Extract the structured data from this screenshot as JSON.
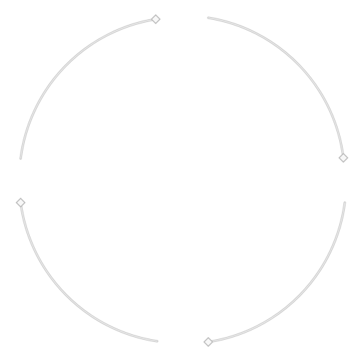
{
  "graphic": {
    "kind": "segmented-circle-reticle",
    "segment_count": 4,
    "stroke_color": "#c6c6c6",
    "highlight_color": "#f2f2f2",
    "cap_fill": "#f7f7f7",
    "cap_stroke": "#b9b9b9",
    "cap_shape": "diamond"
  }
}
